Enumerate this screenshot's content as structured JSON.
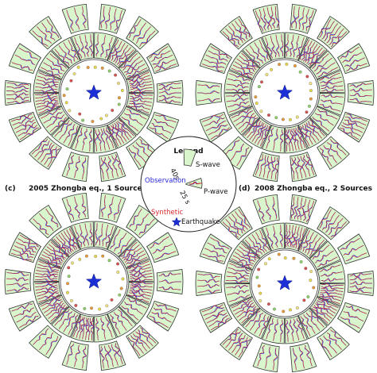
{
  "colors": {
    "sector_fill": "#d8f5cc",
    "sector_stroke": "#333333",
    "observation": "#2a2ad8",
    "synthetic": "#d42a2a",
    "earthquake": "#1c2fd4",
    "station_dots": [
      "#e8d84a",
      "#e89a3a",
      "#8fcf6a",
      "#d85050",
      "#f0e27a"
    ]
  },
  "panels": [
    {
      "id": "a",
      "label": "",
      "title": ""
    },
    {
      "id": "b",
      "label": "",
      "title": ""
    },
    {
      "id": "c",
      "label": "(c)",
      "title": "2005 Zhongba eq., 1 Source"
    },
    {
      "id": "d",
      "label": "(d)",
      "title": "2008 Zhongba eq., 2 Sources"
    }
  ],
  "legend": {
    "title": "Legend",
    "s_wave": "S-wave",
    "p_wave": "P-wave",
    "s_window": "40s",
    "p_window": "25 s",
    "observation": "Observation",
    "synthetic": "Synthetic",
    "earthquake": "Earthquake",
    "earthquake_icon": "star-icon"
  }
}
